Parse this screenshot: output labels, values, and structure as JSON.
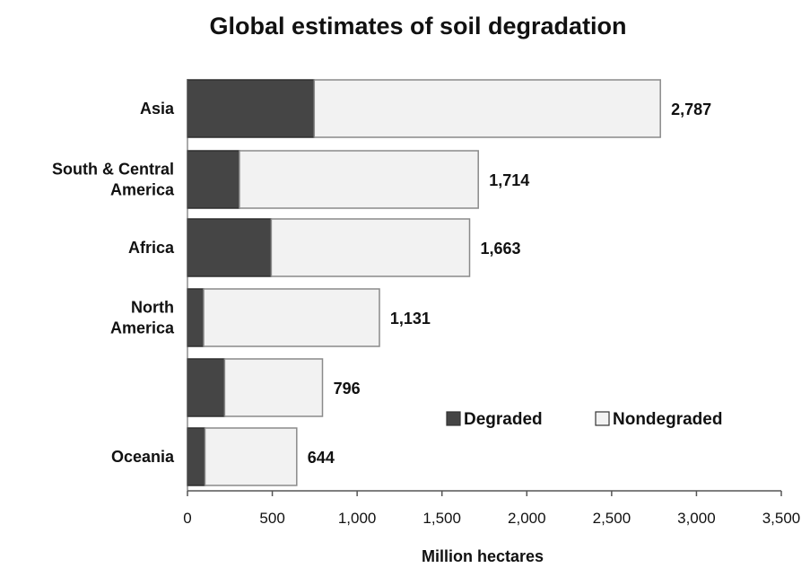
{
  "chart_data": {
    "type": "bar",
    "orientation": "horizontal",
    "stacked": true,
    "title": "Global estimates of soil degradation",
    "xlabel": "Million hectares",
    "ylabel": "",
    "xlim": [
      0,
      3500
    ],
    "xticks": [
      0,
      500,
      1000,
      1500,
      2000,
      2500,
      3000,
      3500
    ],
    "xtick_labels": [
      "0",
      "500",
      "1,000",
      "1,500",
      "2,000",
      "2,500",
      "3,000",
      "3,500"
    ],
    "categories": [
      [
        "Asia"
      ],
      [
        "South & Central",
        "America"
      ],
      [
        "Africa"
      ],
      [
        "North",
        "America"
      ],
      [],
      [
        "Oceania"
      ]
    ],
    "series": [
      {
        "name": "Degraded",
        "color": "#454545",
        "values": [
          747,
          306,
          494,
          95,
          219,
          103
        ]
      },
      {
        "name": "Nondegraded",
        "color": "#f2f2f2",
        "values": [
          2040,
          1408,
          1169,
          1036,
          577,
          541
        ]
      }
    ],
    "totals": [
      2787,
      1714,
      1663,
      1131,
      796,
      644
    ],
    "total_labels": [
      "2,787",
      "1,714",
      "1,663",
      "1,131",
      "796",
      "644"
    ],
    "legend_position": "lower-right",
    "grid": false
  }
}
